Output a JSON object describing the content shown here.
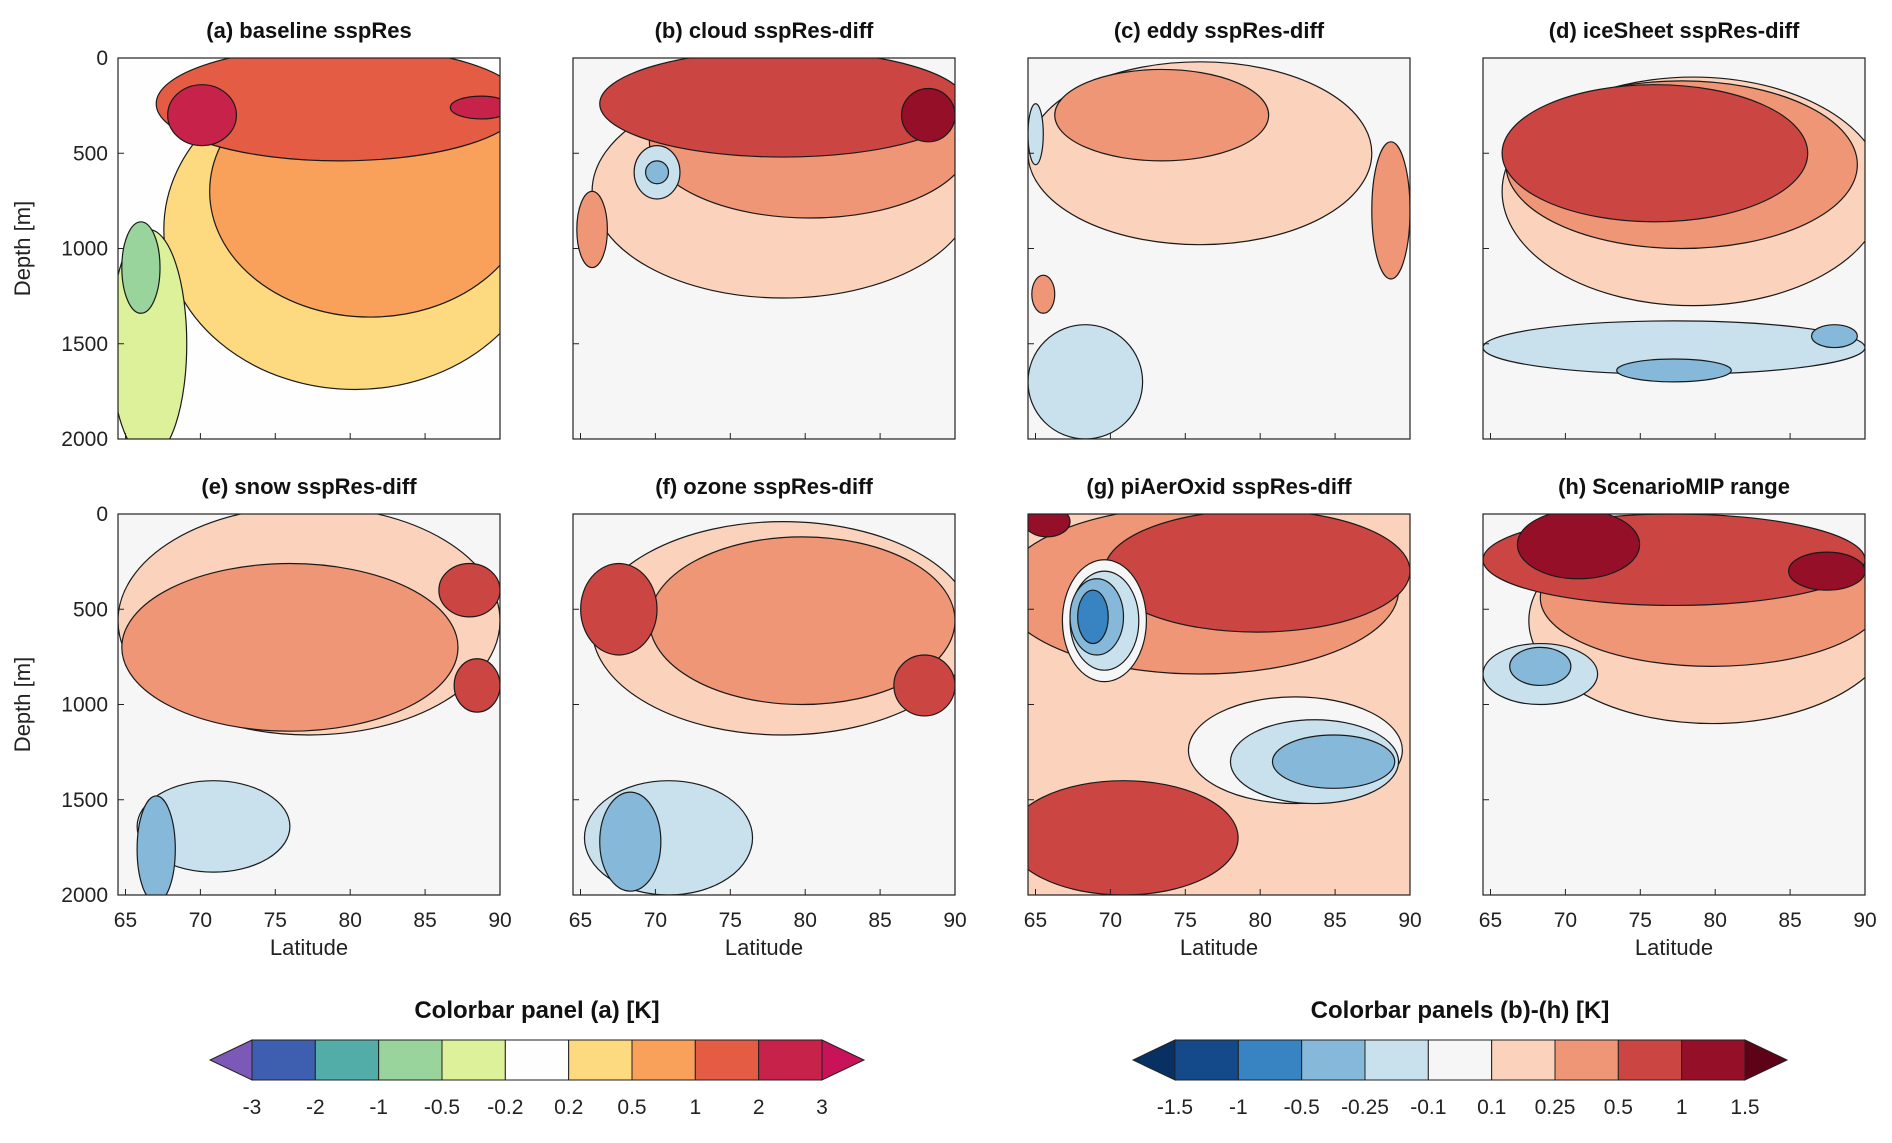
{
  "chart_data": [
    {
      "type": "contour",
      "panel": "a",
      "title": "(a) baseline sspRes",
      "xlabel": "",
      "ylabel": "Depth [m]",
      "xlim": [
        64.5,
        90
      ],
      "ylim": [
        0,
        2000
      ]
    },
    {
      "type": "contour",
      "panel": "b",
      "title": "(b) cloud sspRes-diff",
      "xlabel": "",
      "ylabel": "",
      "xlim": [
        64.5,
        90
      ],
      "ylim": [
        0,
        2000
      ]
    },
    {
      "type": "contour",
      "panel": "c",
      "title": "(c) eddy sspRes-diff",
      "xlabel": "",
      "ylabel": "",
      "xlim": [
        64.5,
        90
      ],
      "ylim": [
        0,
        2000
      ]
    },
    {
      "type": "contour",
      "panel": "d",
      "title": "(d) iceSheet sspRes-diff",
      "xlabel": "",
      "ylabel": "",
      "xlim": [
        64.5,
        90
      ],
      "ylim": [
        0,
        2000
      ]
    },
    {
      "type": "contour",
      "panel": "e",
      "title": "(e) snow sspRes-diff",
      "xlabel": "Latitude",
      "ylabel": "Depth [m]",
      "xlim": [
        64.5,
        90
      ],
      "ylim": [
        0,
        2000
      ]
    },
    {
      "type": "contour",
      "panel": "f",
      "title": "(f) ozone sspRes-diff",
      "xlabel": "Latitude",
      "ylabel": "",
      "xlim": [
        64.5,
        90
      ],
      "ylim": [
        0,
        2000
      ]
    },
    {
      "type": "contour",
      "panel": "g",
      "title": "(g) piAerOxid sspRes-diff",
      "xlabel": "Latitude",
      "ylabel": "",
      "xlim": [
        64.5,
        90
      ],
      "ylim": [
        0,
        2000
      ]
    },
    {
      "type": "contour",
      "panel": "h",
      "title": "(h) ScenarioMIP range",
      "xlabel": "Latitude",
      "ylabel": "",
      "xlim": [
        64.5,
        90
      ],
      "ylim": [
        0,
        2000
      ]
    }
  ],
  "axes": {
    "x_ticks": [
      "65",
      "70",
      "75",
      "80",
      "85",
      "90"
    ],
    "x_tick_values": [
      65,
      70,
      75,
      80,
      85,
      90
    ],
    "y_ticks": [
      "0",
      "500",
      "1000",
      "1500",
      "2000"
    ],
    "y_tick_values": [
      0,
      500,
      1000,
      1500,
      2000
    ]
  },
  "colorbars": [
    {
      "title": "Colorbar panel (a) [K]",
      "labels": [
        "-3",
        "-2",
        "-1",
        "-0.5",
        "-0.2",
        "0.2",
        "0.5",
        "1",
        "2",
        "3"
      ],
      "colors": [
        "#3e5fb0",
        "#52ada8",
        "#98d49c",
        "#ddf19a",
        "#fefefe",
        "#fdda80",
        "#f9a05a",
        "#e55c45",
        "#c7224a"
      ],
      "end_low": "#7d59b7",
      "end_high": "#c8135a"
    },
    {
      "title": "Colorbar panels (b)-(h) [K]",
      "labels": [
        "-1.5",
        "-1",
        "-0.5",
        "-0.25",
        "-0.1",
        "0.1",
        "0.25",
        "0.5",
        "1",
        "1.5"
      ],
      "colors": [
        "#154a8a",
        "#3883c2",
        "#86b9d9",
        "#c9e0ed",
        "#f6f6f6",
        "#fbd2bc",
        "#ee9676",
        "#cb4643",
        "#960f28"
      ],
      "end_low": "#083062",
      "end_high": "#5e0218"
    }
  ]
}
